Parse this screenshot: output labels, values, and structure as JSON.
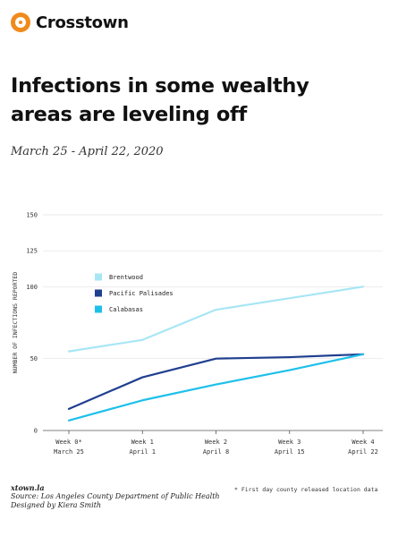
{
  "brand": {
    "name": "Crosstown"
  },
  "headline": {
    "title": "Infections in some wealthy areas are leveling off",
    "subtitle": "March 25 - April 22, 2020"
  },
  "footer": {
    "site": "xtown.la",
    "source": "Source:  Los Angeles County Department of Public Health",
    "designer": "Designed by Kiera Smith",
    "footnote": "* First day county released location data"
  },
  "colors": {
    "brand": "#f08a1c",
    "brentwood": "#a8e6f5",
    "pacific_palisades": "#1f3f8f",
    "calabasas": "#1ec0ea"
  },
  "chart_data": {
    "type": "line",
    "title": "Infections in some wealthy areas are leveling off",
    "subtitle": "March 25 - April 22, 2020",
    "ylabel": "NUMBER OF INFECTIONS REPORTED",
    "xlabel": "",
    "ylim": [
      0,
      125
    ],
    "yticks": [
      0,
      50,
      100,
      125,
      150
    ],
    "ytick_labels": [
      "0",
      "50",
      "100",
      "125",
      "150"
    ],
    "categories": [
      "Week 0*",
      "Week 1",
      "Week 2",
      "Week 3",
      "Week 4"
    ],
    "category_dates": [
      "March 25",
      "April 1",
      "April 8",
      "April 15",
      "April 22"
    ],
    "legend": "top-left",
    "grid": "horizontal",
    "series": [
      {
        "name": "Brentwood",
        "color": "#a8e6f5",
        "values": [
          55,
          63,
          84,
          92,
          100
        ]
      },
      {
        "name": "Pacific Palisades",
        "color": "#1f3f8f",
        "values": [
          15,
          37,
          50,
          51,
          53
        ]
      },
      {
        "name": "Calabasas",
        "color": "#1ec0ea",
        "values": [
          7,
          21,
          32,
          42,
          53
        ]
      }
    ]
  }
}
